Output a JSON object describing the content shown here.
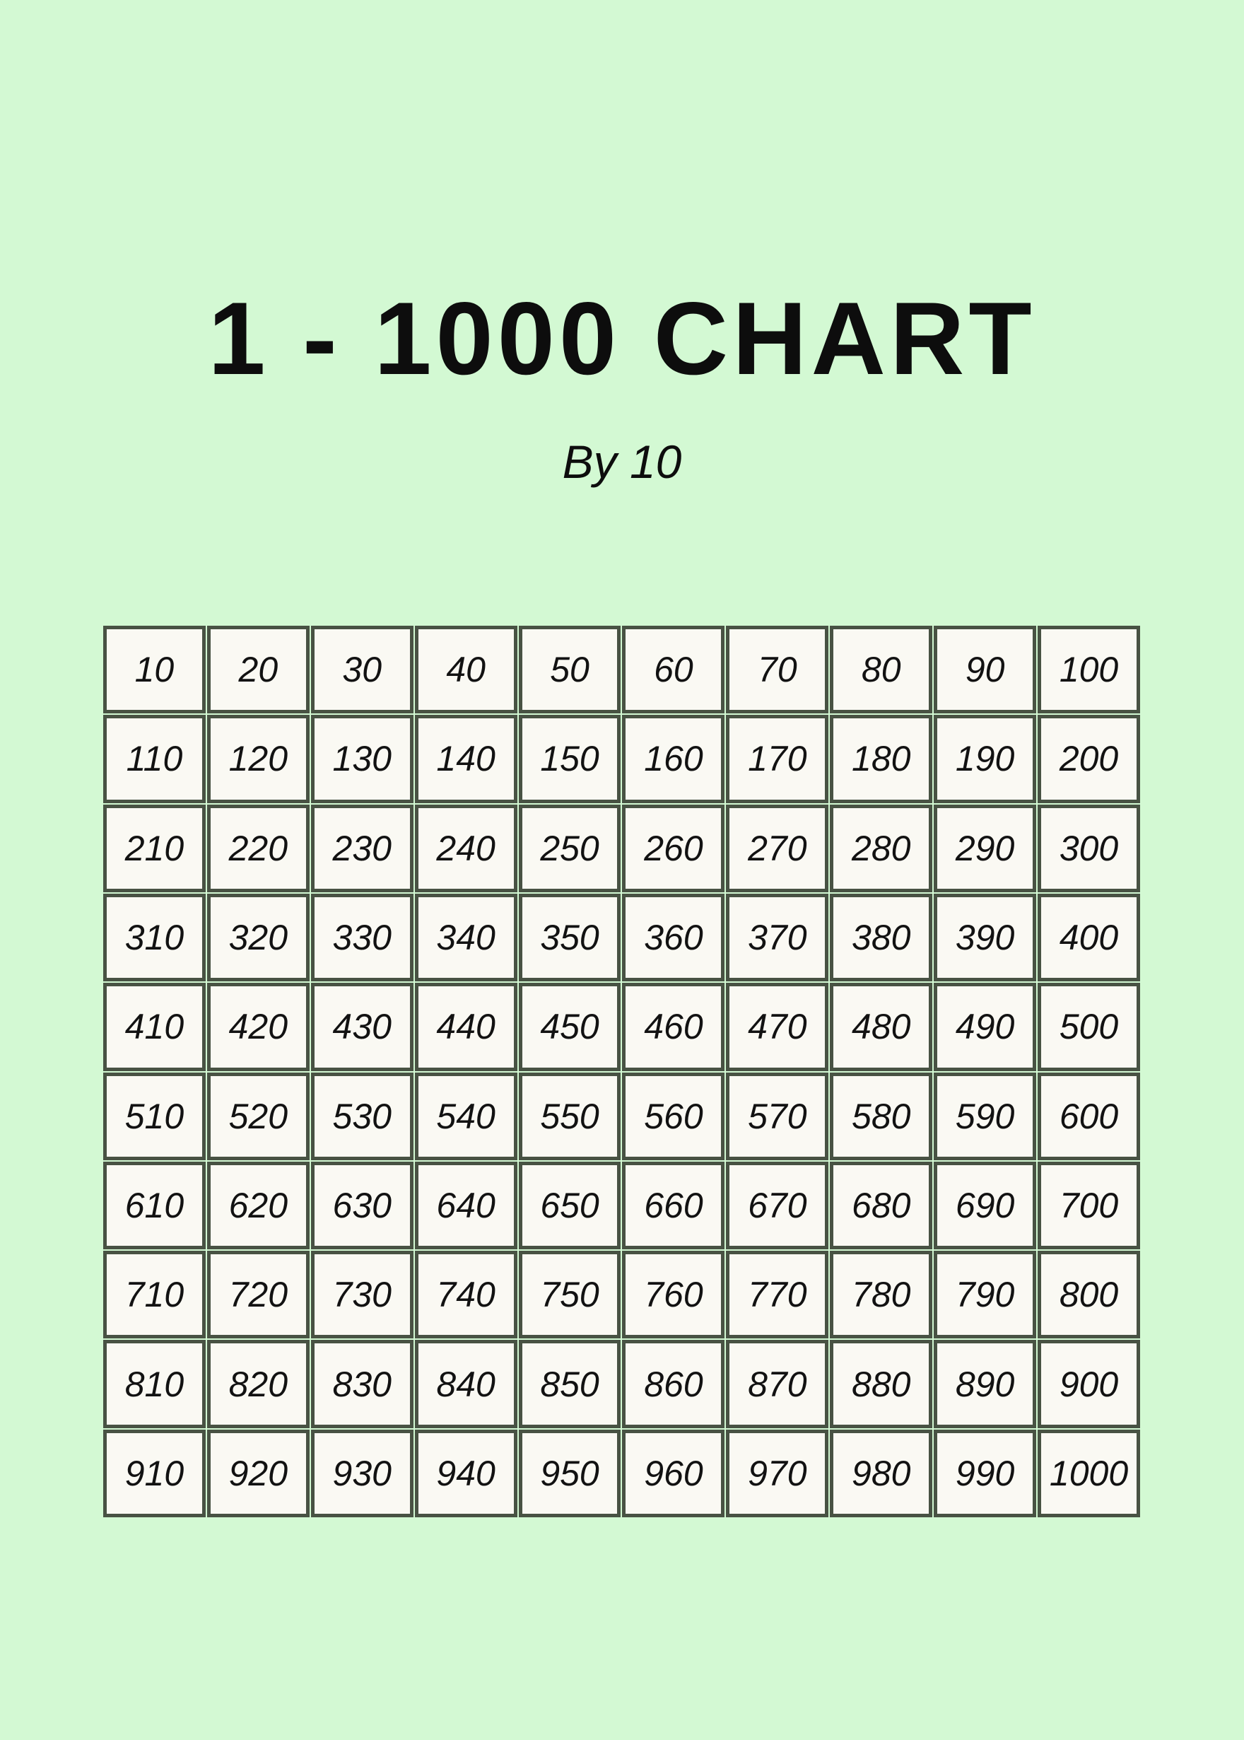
{
  "colors": {
    "page_background": "#d3f9d3",
    "cell_background": "#faf9f3",
    "grid_border": "#485243",
    "text": "#121212",
    "title_color": "#0d0d0d"
  },
  "header": {
    "title": "1 - 1000 CHART",
    "subtitle": "By 10"
  },
  "grid": {
    "rows": [
      [
        10,
        20,
        30,
        40,
        50,
        60,
        70,
        80,
        90,
        100
      ],
      [
        110,
        120,
        130,
        140,
        150,
        160,
        170,
        180,
        190,
        200
      ],
      [
        210,
        220,
        230,
        240,
        250,
        260,
        270,
        280,
        290,
        300
      ],
      [
        310,
        320,
        330,
        340,
        350,
        360,
        370,
        380,
        390,
        400
      ],
      [
        410,
        420,
        430,
        440,
        450,
        460,
        470,
        480,
        490,
        500
      ],
      [
        510,
        520,
        530,
        540,
        550,
        560,
        570,
        580,
        590,
        600
      ],
      [
        610,
        620,
        630,
        640,
        650,
        660,
        670,
        680,
        690,
        700
      ],
      [
        710,
        720,
        730,
        740,
        750,
        760,
        770,
        780,
        790,
        800
      ],
      [
        810,
        820,
        830,
        840,
        850,
        860,
        870,
        880,
        890,
        900
      ],
      [
        910,
        920,
        930,
        940,
        950,
        960,
        970,
        980,
        990,
        1000
      ]
    ]
  }
}
